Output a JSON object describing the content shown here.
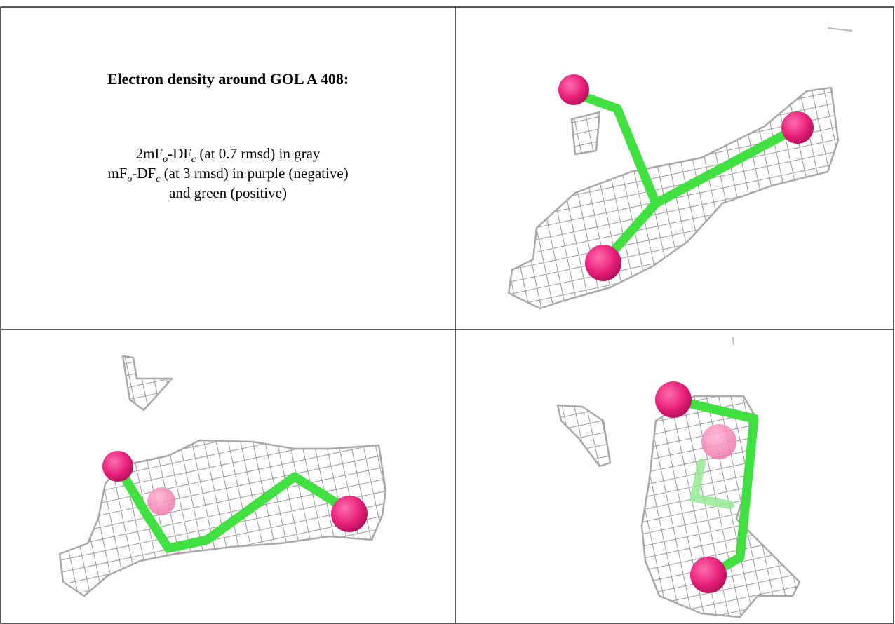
{
  "caption": {
    "title": "Electron density around GOL A 408:",
    "lines": [
      [
        {
          "text": "2mF"
        },
        {
          "sub": "o"
        },
        {
          "text": "-DF"
        },
        {
          "sub": "c"
        },
        {
          "text": " (at 0.7 rmsd) in gray"
        }
      ],
      [
        {
          "text": "mF"
        },
        {
          "sub": "o"
        },
        {
          "text": "-DF"
        },
        {
          "sub": "c"
        },
        {
          "text": " (at 3 rmsd) in purple (negative)"
        }
      ],
      [
        {
          "text": "and green (positive)"
        }
      ]
    ]
  }
}
